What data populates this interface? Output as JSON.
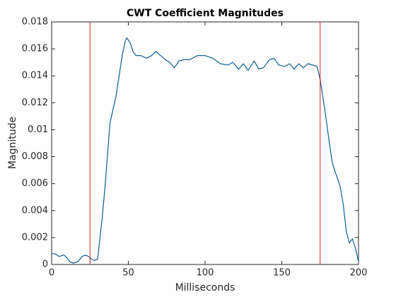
{
  "chart_data": {
    "type": "line",
    "title": "CWT Coefficient Magnitudes",
    "xlabel": "Milliseconds",
    "ylabel": "Magnitude",
    "xlim": [
      0,
      200
    ],
    "xticks": [
      0,
      50,
      100,
      150,
      200
    ],
    "ylim": [
      0,
      0.018
    ],
    "yticks": [
      0,
      0.002,
      0.004,
      0.006,
      0.008,
      0.01,
      0.012,
      0.014,
      0.016,
      0.018
    ],
    "vlines": [
      25,
      175
    ],
    "vline_color": "#d62020",
    "x": [
      0,
      2,
      5,
      8,
      10,
      12,
      14,
      17,
      20,
      22,
      24,
      26,
      28,
      30,
      31,
      33,
      35,
      37,
      38,
      40,
      42,
      44,
      46,
      48,
      49,
      51,
      53,
      55,
      58,
      62,
      65,
      68,
      71,
      74,
      77,
      80,
      83,
      86,
      90,
      95,
      100,
      105,
      110,
      115,
      118,
      122,
      125,
      128,
      132,
      135,
      138,
      142,
      145,
      148,
      152,
      155,
      158,
      161,
      164,
      167,
      170,
      173,
      175,
      178,
      181,
      183,
      185,
      188,
      190,
      192,
      194,
      196,
      198,
      200
    ],
    "series": [
      {
        "name": "Magnitude",
        "color": "#0a5f94",
        "values": [
          0.0008,
          0.0008,
          0.0006,
          0.0007,
          0.0005,
          0.0002,
          0.0001,
          0.0002,
          0.0006,
          0.0007,
          0.0006,
          0.0004,
          0.0003,
          0.0004,
          0.0015,
          0.0035,
          0.006,
          0.009,
          0.0105,
          0.0115,
          0.0125,
          0.014,
          0.0155,
          0.0166,
          0.0168,
          0.0165,
          0.0158,
          0.0155,
          0.0155,
          0.0153,
          0.0155,
          0.0158,
          0.0155,
          0.0152,
          0.015,
          0.0146,
          0.0151,
          0.0152,
          0.0152,
          0.0155,
          0.0155,
          0.0153,
          0.0149,
          0.0148,
          0.015,
          0.0145,
          0.0149,
          0.0144,
          0.0151,
          0.0145,
          0.0146,
          0.0152,
          0.0153,
          0.0148,
          0.0147,
          0.0149,
          0.0145,
          0.0149,
          0.0146,
          0.0149,
          0.0148,
          0.0147,
          0.0137,
          0.0115,
          0.009,
          0.0075,
          0.0068,
          0.0058,
          0.0045,
          0.0025,
          0.0016,
          0.0019,
          0.0012,
          0.0002
        ]
      }
    ]
  }
}
